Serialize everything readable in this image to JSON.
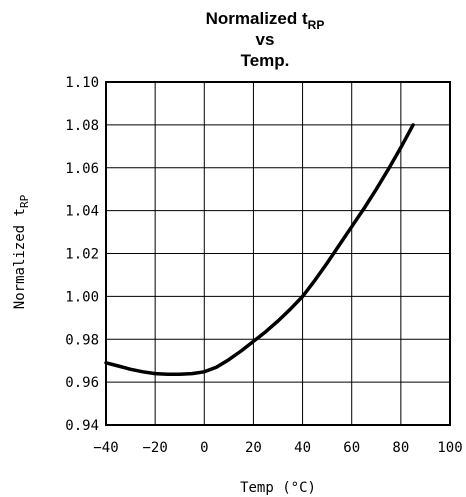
{
  "chart_data": {
    "type": "line",
    "title": {
      "line1_main": "Normalized t",
      "line1_sub": "RP",
      "line2": "vs",
      "line3": "Temp."
    },
    "xlabel": "Temp (°C)",
    "ylabel": {
      "main": "Normalized t",
      "sub": "RP"
    },
    "xlim": [
      -40,
      100
    ],
    "ylim": [
      0.94,
      1.1
    ],
    "xticks": [
      -40,
      -20,
      0,
      20,
      40,
      60,
      80,
      100
    ],
    "xtick_labels": [
      "−40",
      "−20",
      "0",
      "20",
      "40",
      "60",
      "80",
      "100"
    ],
    "yticks": [
      0.94,
      0.96,
      0.98,
      1.0,
      1.02,
      1.04,
      1.06,
      1.08,
      1.1
    ],
    "ytick_labels": [
      "0.94",
      "0.96",
      "0.98",
      "1.00",
      "1.02",
      "1.04",
      "1.06",
      "1.08",
      "1.10"
    ],
    "grid": true,
    "series": [
      {
        "color": "#000000",
        "x": [
          -40,
          -35,
          -30,
          -25,
          -20,
          -15,
          -10,
          -5,
          0,
          5,
          10,
          15,
          20,
          25,
          30,
          35,
          40,
          45,
          50,
          55,
          60,
          65,
          70,
          75,
          80,
          85
        ],
        "y": [
          0.969,
          0.9675,
          0.966,
          0.9648,
          0.964,
          0.9637,
          0.9637,
          0.964,
          0.9648,
          0.967,
          0.9705,
          0.9745,
          0.979,
          0.9835,
          0.9885,
          0.994,
          1.0,
          1.0075,
          1.0155,
          1.024,
          1.0325,
          1.041,
          1.05,
          1.0595,
          1.0695,
          1.08
        ]
      }
    ]
  }
}
